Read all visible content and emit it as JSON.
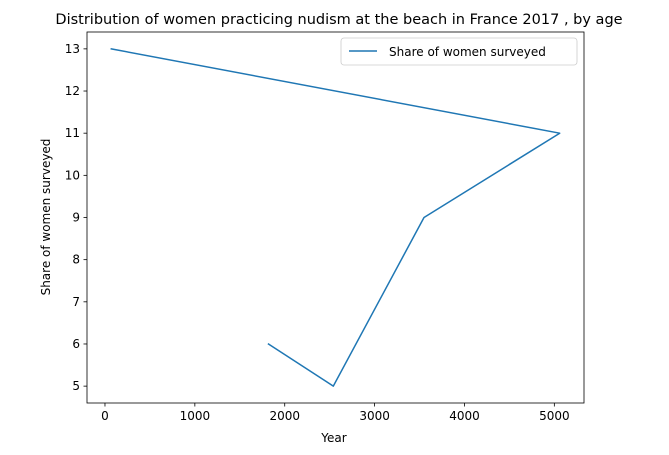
{
  "chart_data": {
    "type": "line",
    "title": "Distribution of women practicing nudism at the beach in France 2017 , by age",
    "xlabel": "Year",
    "ylabel": "Share of women surveyed",
    "xlim": [
      -200,
      5330
    ],
    "ylim": [
      4.6,
      13.4
    ],
    "xticks": [
      0,
      1000,
      2000,
      3000,
      4000,
      5000
    ],
    "yticks": [
      5,
      6,
      7,
      8,
      9,
      10,
      11,
      12,
      13
    ],
    "grid": false,
    "legend_position": "top-right",
    "series": [
      {
        "name": "Share of women surveyed",
        "color": "#1f77b4",
        "x": [
          70,
          5060,
          3550,
          2540,
          1820
        ],
        "y": [
          13,
          11,
          9,
          5,
          6
        ]
      }
    ]
  }
}
